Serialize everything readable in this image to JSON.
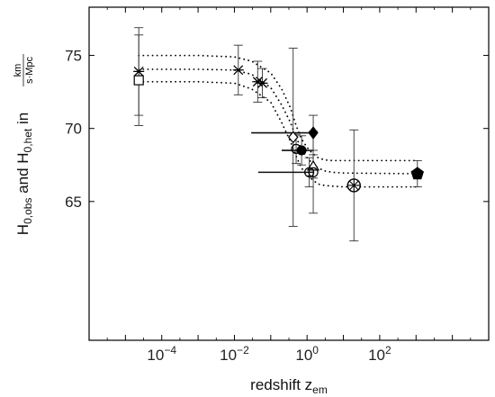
{
  "chart_data": {
    "type": "scatter",
    "xlabel": "redshift z",
    "xlabel_sub": "em",
    "ylabel_parts": {
      "h1": "H",
      "h1_sub": "0,obs",
      "and": " and ",
      "h2": "H",
      "h2_sub": "0,het",
      "in": " in ",
      "unit_num": "km",
      "unit_den": "s·Mpc"
    },
    "x_scale": "log",
    "x_range": [
      1e-06,
      100000
    ],
    "y_range": [
      55.5,
      78.3
    ],
    "x_ticks": [
      {
        "value": 0.0001,
        "base": "10",
        "exp": "−4"
      },
      {
        "value": 0.01,
        "base": "10",
        "exp": "−2"
      },
      {
        "value": 1,
        "base": "10",
        "exp": "0"
      },
      {
        "value": 100,
        "base": "10",
        "exp": "2"
      }
    ],
    "y_ticks": [
      {
        "value": 65,
        "label": "65"
      },
      {
        "value": 70,
        "label": "70"
      },
      {
        "value": 75,
        "label": "75"
      }
    ],
    "grid": false,
    "points": [
      {
        "marker": "square",
        "x": 2.33e-05,
        "y": 73.3,
        "y_low": 70.2,
        "y_high": 76.4
      },
      {
        "marker": "star",
        "x": 2.33e-05,
        "y": 73.9,
        "y_low": 70.9,
        "y_high": 76.9
      },
      {
        "marker": "star",
        "x": 0.0128,
        "y": 74.0,
        "y_low": 72.3,
        "y_high": 75.7
      },
      {
        "marker": "star",
        "x": 0.0437,
        "y": 73.2,
        "y_low": 71.8,
        "y_high": 74.6
      },
      {
        "marker": "star",
        "x": 0.0589,
        "y": 73.1,
        "y_low": 72.1,
        "y_high": 74.1
      },
      {
        "marker": "diamond",
        "x": 0.414,
        "y": 69.4,
        "y_low": 63.3,
        "y_high": 75.5
      },
      {
        "marker": "circle-open",
        "x": 0.5,
        "y": 68.6,
        "y_low": 67.6,
        "y_high": 69.6
      },
      {
        "marker": "circle-filled",
        "x": 0.708,
        "y": 68.5,
        "y_low": 67.5,
        "y_high": 69.5,
        "x_low": 0.2,
        "x_high": 1.5
      },
      {
        "marker": "diamond-filled",
        "x": 1.48,
        "y": 69.7,
        "y_low": 68.5,
        "y_high": 70.9,
        "x_low": 0.029,
        "x_high": 1.48
      },
      {
        "marker": "triangle",
        "x": 1.48,
        "y": 67.4,
        "y_low": 66.6,
        "y_high": 68.2
      },
      {
        "marker": "circle-open",
        "x": 1.15,
        "y": 67.0,
        "y_low": 66.0,
        "y_high": 68.0
      },
      {
        "marker": "circle-open",
        "x": 1.48,
        "y": 67.0,
        "y_low": 64.2,
        "y_high": 69.8,
        "x_low": 0.045,
        "x_high": 1.48
      },
      {
        "marker": "circle-cross",
        "x": 19.5,
        "y": 66.1,
        "y_low": 62.3,
        "y_high": 69.9
      },
      {
        "marker": "pentagon",
        "x": 1090,
        "y": 66.9,
        "y_low": 66.0,
        "y_high": 67.8
      }
    ],
    "model_curves": [
      {
        "style": "dotted",
        "role": "center",
        "x": [
          2.33e-05,
          0.001,
          0.01,
          0.03,
          0.1,
          0.2,
          0.35,
          0.5,
          0.7,
          1,
          1.4,
          2,
          3,
          5,
          10,
          1090
        ],
        "y": [
          74.05,
          74.05,
          74.0,
          73.7,
          72.8,
          71.6,
          70.4,
          69.4,
          68.6,
          68.0,
          67.6,
          67.3,
          67.1,
          67.0,
          66.95,
          66.9
        ]
      },
      {
        "style": "dotted",
        "role": "upper",
        "x": [
          2.33e-05,
          0.001,
          0.01,
          0.03,
          0.1,
          0.2,
          0.35,
          0.5,
          0.7,
          1,
          1.4,
          2,
          3,
          5,
          10,
          1090
        ],
        "y": [
          75.0,
          75.0,
          74.9,
          74.6,
          73.8,
          72.7,
          71.4,
          70.2,
          69.3,
          68.7,
          68.3,
          68.0,
          67.85,
          67.8,
          67.8,
          67.8
        ]
      },
      {
        "style": "dotted",
        "role": "lower",
        "x": [
          2.33e-05,
          0.001,
          0.01,
          0.03,
          0.1,
          0.2,
          0.35,
          0.5,
          0.7,
          1,
          1.4,
          2,
          3,
          5,
          10,
          1090
        ],
        "y": [
          73.2,
          73.2,
          73.1,
          72.7,
          71.8,
          70.4,
          69.1,
          68.1,
          67.3,
          66.8,
          66.5,
          66.2,
          66.1,
          66.05,
          66.0,
          66.0
        ]
      }
    ]
  }
}
